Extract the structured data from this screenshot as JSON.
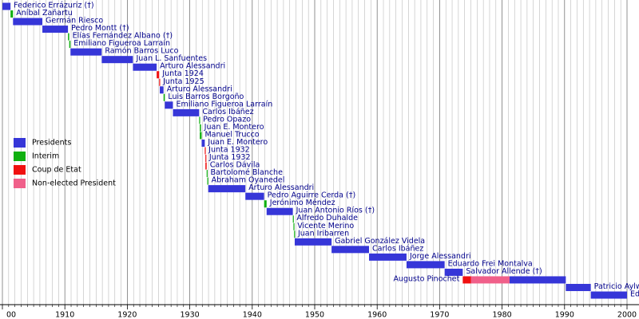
{
  "chart_data": {
    "type": "timeline",
    "legend": [
      {
        "name": "Presidents",
        "color": "#3636d8"
      },
      {
        "name": "Interim",
        "color": "#10b010"
      },
      {
        "name": "Coup de Etat",
        "color": "#f01010"
      },
      {
        "name": "Non-elected President",
        "color": "#f0608a"
      }
    ],
    "xlim": [
      1900,
      2000
    ],
    "xticks": [
      {
        "value": 1900,
        "label": "00"
      },
      1910,
      1920,
      1930,
      1940,
      1950,
      1960,
      1970,
      1980,
      1990,
      2000
    ],
    "xminorticks": [
      1901,
      1902,
      1903,
      1904,
      1905,
      1906,
      1907,
      1908,
      1909,
      1911,
      1912,
      1913,
      1914,
      1915,
      1916,
      1917,
      1918,
      1919,
      1921,
      1922,
      1923,
      1924,
      1925,
      1926,
      1927,
      1928,
      1929,
      1931,
      1932,
      1933,
      1934,
      1935,
      1936,
      1937,
      1938,
      1939,
      1941,
      1942,
      1943,
      1944,
      1945,
      1946,
      1947,
      1948,
      1949,
      1951,
      1952,
      1953,
      1954,
      1955,
      1956,
      1957,
      1958,
      1959,
      1961,
      1962,
      1963,
      1964,
      1965,
      1966,
      1967,
      1968,
      1969,
      1971,
      1972,
      1973,
      1974,
      1975,
      1976,
      1977,
      1978,
      1979,
      1981,
      1982,
      1983,
      1984,
      1985,
      1986,
      1987,
      1988,
      1989,
      1991,
      1992,
      1993,
      1994,
      1995,
      1996,
      1997,
      1998,
      1999
    ],
    "rows": [
      {
        "label": "Federico Errázuriz (†)",
        "segments": [
          {
            "start": 1900,
            "end": 1901.3,
            "group": 0
          }
        ]
      },
      {
        "label": "Aníbal Zañartu",
        "segments": [
          {
            "start": 1901.3,
            "end": 1901.7,
            "group": 1
          }
        ]
      },
      {
        "label": "Germán Riesco",
        "segments": [
          {
            "start": 1901.7,
            "end": 1906.4,
            "group": 0
          }
        ]
      },
      {
        "label": "Pedro Montt (†)",
        "segments": [
          {
            "start": 1906.4,
            "end": 1910.5,
            "group": 0
          }
        ]
      },
      {
        "label": "Elías Fernández Albano (†)",
        "segments": [
          {
            "start": 1910.5,
            "end": 1910.7,
            "group": 1
          }
        ]
      },
      {
        "label": "Emiliano Figueroa Larraín",
        "segments": [
          {
            "start": 1910.7,
            "end": 1910.9,
            "group": 1
          }
        ]
      },
      {
        "label": "Ramón Barros Luco",
        "segments": [
          {
            "start": 1910.9,
            "end": 1915.9,
            "group": 0
          }
        ]
      },
      {
        "label": "Juan L. Sanfuentes",
        "segments": [
          {
            "start": 1915.9,
            "end": 1920.9,
            "group": 0
          }
        ]
      },
      {
        "label": "Arturo Alessandri",
        "segments": [
          {
            "start": 1920.9,
            "end": 1924.7,
            "group": 0
          }
        ]
      },
      {
        "label": "Junta 1924",
        "segments": [
          {
            "start": 1924.7,
            "end": 1925.1,
            "group": 2
          }
        ]
      },
      {
        "label": "Junta 1925",
        "segments": [
          {
            "start": 1925.1,
            "end": 1925.2,
            "group": 2
          }
        ]
      },
      {
        "label": "Arturo Alessandri",
        "segments": [
          {
            "start": 1925.2,
            "end": 1925.8,
            "group": 0
          }
        ]
      },
      {
        "label": "Luis Barros Borgoño",
        "segments": [
          {
            "start": 1925.8,
            "end": 1926.0,
            "group": 1
          }
        ]
      },
      {
        "label": "Emiliano Figueroa Larraín",
        "segments": [
          {
            "start": 1926.0,
            "end": 1927.3,
            "group": 0
          }
        ]
      },
      {
        "label": "Carlos Ibáñez",
        "segments": [
          {
            "start": 1927.3,
            "end": 1931.5,
            "group": 0
          }
        ]
      },
      {
        "label": "Pedro Opazo",
        "segments": [
          {
            "start": 1931.5,
            "end": 1931.6,
            "group": 1
          }
        ]
      },
      {
        "label": "Juan E. Montero",
        "segments": [
          {
            "start": 1931.6,
            "end": 1931.8,
            "group": 1
          }
        ]
      },
      {
        "label": "Manuel Trucco",
        "segments": [
          {
            "start": 1931.6,
            "end": 1931.9,
            "group": 1
          }
        ]
      },
      {
        "label": "Juan E. Montero",
        "segments": [
          {
            "start": 1931.9,
            "end": 1932.4,
            "group": 0
          }
        ]
      },
      {
        "label": "Junta 1932",
        "segments": [
          {
            "start": 1932.4,
            "end": 1932.5,
            "group": 2
          }
        ]
      },
      {
        "label": "Junta 1932",
        "segments": [
          {
            "start": 1932.5,
            "end": 1932.6,
            "group": 2
          }
        ]
      },
      {
        "label": "Carlos Dávila",
        "segments": [
          {
            "start": 1932.5,
            "end": 1932.7,
            "group": 2
          }
        ]
      },
      {
        "label": "Bartolomé Blanche",
        "segments": [
          {
            "start": 1932.7,
            "end": 1932.8,
            "group": 1
          }
        ]
      },
      {
        "label": "Abraham Oyanedel",
        "segments": [
          {
            "start": 1932.8,
            "end": 1932.95,
            "group": 1
          }
        ]
      },
      {
        "label": "Arturo Alessandri",
        "segments": [
          {
            "start": 1932.95,
            "end": 1938.9,
            "group": 0
          }
        ]
      },
      {
        "label": "Pedro Aguirre Cerda (†)",
        "segments": [
          {
            "start": 1938.9,
            "end": 1941.9,
            "group": 0
          }
        ]
      },
      {
        "label": "Jerónimo Méndez",
        "segments": [
          {
            "start": 1941.9,
            "end": 1942.3,
            "group": 1
          }
        ]
      },
      {
        "label": "Juan Antonio Ríos (†)",
        "segments": [
          {
            "start": 1942.3,
            "end": 1946.5,
            "group": 0
          }
        ]
      },
      {
        "label": "Alfredo Duhalde",
        "segments": [
          {
            "start": 1946.5,
            "end": 1946.6,
            "group": 1
          }
        ]
      },
      {
        "label": "Vicente Merino",
        "segments": [
          {
            "start": 1946.6,
            "end": 1946.7,
            "group": 1
          }
        ]
      },
      {
        "label": "Juan Iribarren",
        "segments": [
          {
            "start": 1946.7,
            "end": 1946.8,
            "group": 1
          }
        ]
      },
      {
        "label": "Gabriel González Videla",
        "segments": [
          {
            "start": 1946.8,
            "end": 1952.7,
            "group": 0
          }
        ]
      },
      {
        "label": "Carlos Ibáñez",
        "segments": [
          {
            "start": 1952.7,
            "end": 1958.7,
            "group": 0
          }
        ]
      },
      {
        "label": "Jorge Alessandri",
        "segments": [
          {
            "start": 1958.7,
            "end": 1964.7,
            "group": 0
          }
        ]
      },
      {
        "label": "Eduardo Frei Montalva",
        "segments": [
          {
            "start": 1964.7,
            "end": 1970.8,
            "group": 0
          }
        ]
      },
      {
        "label": "Salvador Allende (†)",
        "segments": [
          {
            "start": 1970.8,
            "end": 1973.7,
            "group": 0
          }
        ]
      },
      {
        "label": "Augusto Pinochet",
        "segments": [
          {
            "start": 1973.7,
            "end": 1975.0,
            "group": 2
          },
          {
            "start": 1975.0,
            "end": 1981.2,
            "group": 3
          },
          {
            "start": 1981.2,
            "end": 1990.2,
            "group": 0
          }
        ]
      },
      {
        "label": "Patricio Aylwin",
        "segments": [
          {
            "start": 1990.2,
            "end": 1994.2,
            "group": 0
          }
        ]
      },
      {
        "label": "Eduardo Frei Ruiz-Tagle",
        "segments": [
          {
            "start": 1994.2,
            "end": 2000,
            "group": 0
          }
        ]
      }
    ]
  }
}
